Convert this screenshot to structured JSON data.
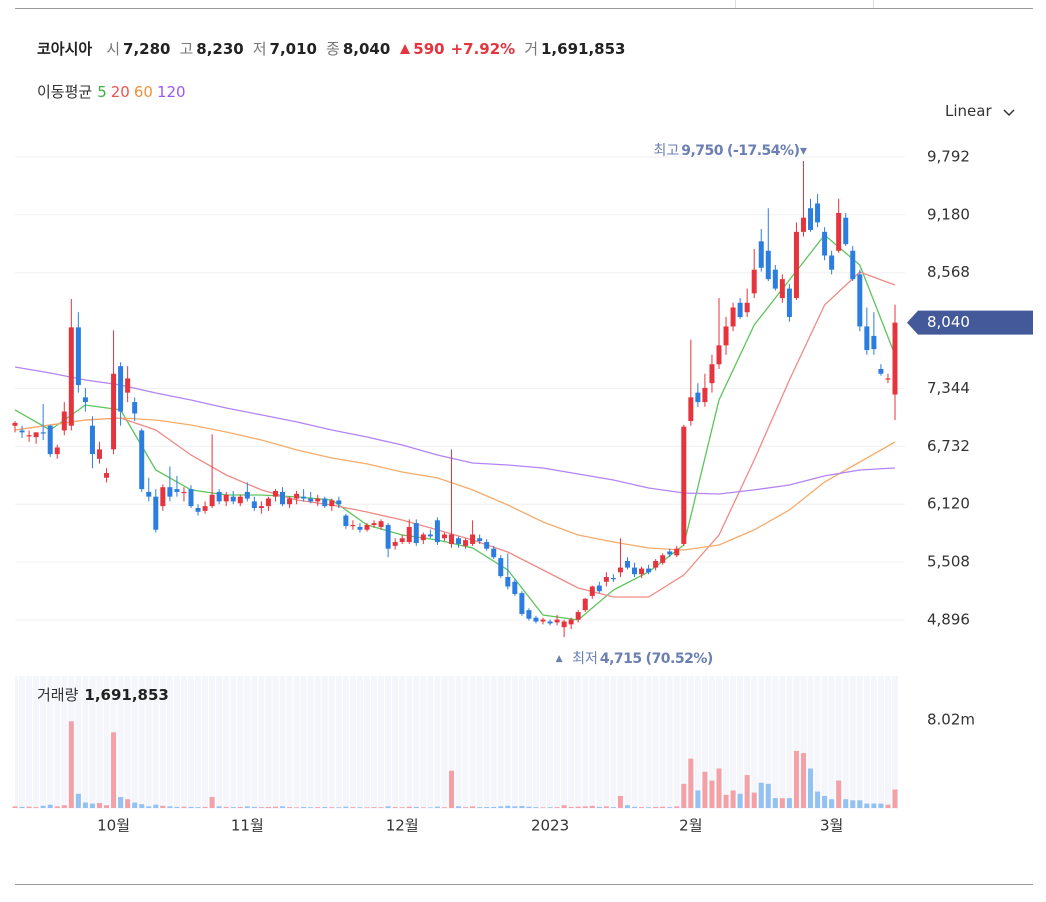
{
  "header": {
    "name": "코아시아",
    "fields": [
      {
        "label": "시",
        "value": "7,280"
      },
      {
        "label": "고",
        "value": "8,230"
      },
      {
        "label": "저",
        "value": "7,010"
      },
      {
        "label": "종",
        "value": "8,040"
      }
    ],
    "change": "590",
    "change_pct": "+7.92%",
    "volume_label": "거",
    "volume": "1,691,853"
  },
  "scale_mode": "Linear",
  "chart_data": {
    "type": "candlestick",
    "categories": [
      null,
      null,
      null,
      null,
      null,
      null,
      null,
      null,
      null,
      null,
      null,
      null,
      null,
      null,
      "10월",
      null,
      null,
      null,
      null,
      null,
      null,
      null,
      null,
      null,
      null,
      null,
      null,
      null,
      null,
      null,
      null,
      null,
      null,
      "11월",
      null,
      null,
      null,
      null,
      null,
      null,
      null,
      null,
      null,
      null,
      null,
      null,
      null,
      null,
      null,
      null,
      null,
      null,
      null,
      null,
      null,
      "12월",
      null,
      null,
      null,
      null,
      null,
      null,
      null,
      null,
      null,
      null,
      null,
      null,
      null,
      null,
      null,
      null,
      null,
      null,
      null,
      null,
      "2023",
      null,
      null,
      null,
      null,
      null,
      null,
      null,
      null,
      null,
      null,
      null,
      null,
      null,
      null,
      null,
      null,
      null,
      null,
      null,
      "2월",
      null,
      null,
      null,
      null,
      null,
      null,
      null,
      null,
      null,
      null,
      null,
      null,
      null,
      null,
      null,
      null,
      null,
      null,
      null,
      "3월",
      null,
      null,
      null,
      null,
      null,
      null,
      null,
      null,
      null
    ],
    "candles": [
      [
        6950,
        7000,
        6880,
        6980
      ],
      [
        6900,
        6950,
        6820,
        6880
      ],
      [
        6850,
        6900,
        6780,
        6850
      ],
      [
        6830,
        6880,
        6760,
        6880
      ],
      [
        6880,
        7180,
        6800,
        6870
      ],
      [
        6950,
        6960,
        6620,
        6650
      ],
      [
        6650,
        6750,
        6600,
        6720
      ],
      [
        6900,
        7200,
        6850,
        7100
      ],
      [
        6950,
        8290,
        6900,
        7990
      ],
      [
        7990,
        8150,
        7300,
        7380
      ],
      [
        7250,
        7350,
        7100,
        7200
      ],
      [
        6950,
        7050,
        6500,
        6650
      ],
      [
        6600,
        6780,
        6550,
        6700
      ],
      [
        6400,
        6500,
        6350,
        6450
      ],
      [
        6700,
        7960,
        6650,
        7500
      ],
      [
        7580,
        7620,
        6950,
        7100
      ],
      [
        7300,
        7580,
        7200,
        7450
      ],
      [
        7200,
        7250,
        7000,
        7080
      ],
      [
        6900,
        6920,
        6250,
        6280
      ],
      [
        6250,
        6400,
        6150,
        6200
      ],
      [
        6200,
        6280,
        5820,
        5850
      ],
      [
        6100,
        6330,
        6050,
        6300
      ],
      [
        6300,
        6520,
        6150,
        6200
      ],
      [
        6280,
        6420,
        6200,
        6250
      ],
      [
        6250,
        6300,
        6150,
        6250
      ],
      [
        6280,
        6320,
        6080,
        6100
      ],
      [
        6080,
        6120,
        6000,
        6040
      ],
      [
        6050,
        6150,
        6020,
        6100
      ],
      [
        6100,
        6860,
        6080,
        6220
      ],
      [
        6250,
        6280,
        6120,
        6150
      ],
      [
        6150,
        6250,
        6100,
        6220
      ],
      [
        6200,
        6260,
        6120,
        6150
      ],
      [
        6130,
        6220,
        6100,
        6200
      ],
      [
        6250,
        6350,
        6150,
        6180
      ],
      [
        6150,
        6200,
        6050,
        6080
      ],
      [
        6080,
        6150,
        6020,
        6100
      ],
      [
        6100,
        6200,
        6050,
        6180
      ],
      [
        6200,
        6280,
        6150,
        6260
      ],
      [
        6250,
        6300,
        6100,
        6120
      ],
      [
        6120,
        6200,
        6080,
        6180
      ],
      [
        6180,
        6260,
        6120,
        6230
      ],
      [
        6200,
        6280,
        6150,
        6180
      ],
      [
        6180,
        6250,
        6130,
        6150
      ],
      [
        6150,
        6220,
        6100,
        6180
      ],
      [
        6180,
        6200,
        6080,
        6100
      ],
      [
        6100,
        6180,
        6050,
        6160
      ],
      [
        6160,
        6200,
        6080,
        6120
      ],
      [
        6000,
        6020,
        5860,
        5890
      ],
      [
        5890,
        5950,
        5850,
        5900
      ],
      [
        5880,
        5920,
        5820,
        5850
      ],
      [
        5850,
        5920,
        5830,
        5900
      ],
      [
        5900,
        5950,
        5870,
        5920
      ],
      [
        5880,
        5960,
        5850,
        5940
      ],
      [
        5900,
        5920,
        5560,
        5650
      ],
      [
        5680,
        5760,
        5640,
        5720
      ],
      [
        5720,
        5800,
        5700,
        5760
      ],
      [
        5720,
        5960,
        5700,
        5880
      ],
      [
        5920,
        5960,
        5680,
        5710
      ],
      [
        5740,
        5820,
        5700,
        5800
      ],
      [
        5800,
        5850,
        5760,
        5780
      ],
      [
        5950,
        5980,
        5690,
        5720
      ],
      [
        5760,
        5820,
        5730,
        5800
      ],
      [
        5700,
        6700,
        5660,
        5800
      ],
      [
        5760,
        5780,
        5660,
        5700
      ],
      [
        5680,
        5760,
        5650,
        5740
      ],
      [
        5700,
        5950,
        5680,
        5800
      ],
      [
        5760,
        5800,
        5700,
        5730
      ],
      [
        5720,
        5750,
        5630,
        5650
      ],
      [
        5650,
        5680,
        5540,
        5560
      ],
      [
        5550,
        5580,
        5340,
        5360
      ],
      [
        5350,
        5600,
        5220,
        5250
      ],
      [
        5300,
        5330,
        5150,
        5170
      ],
      [
        5180,
        5200,
        4940,
        4960
      ],
      [
        5000,
        5020,
        4890,
        4910
      ],
      [
        4920,
        4940,
        4860,
        4880
      ],
      [
        4880,
        4920,
        4850,
        4900
      ],
      [
        4880,
        4900,
        4840,
        4860
      ],
      [
        4870,
        4950,
        4840,
        4900
      ],
      [
        4820,
        4900,
        4715,
        4880
      ],
      [
        4850,
        4920,
        4800,
        4900
      ],
      [
        4900,
        5000,
        4870,
        4980
      ],
      [
        5000,
        5130,
        4980,
        5120
      ],
      [
        5150,
        5260,
        5120,
        5250
      ],
      [
        5260,
        5300,
        5180,
        5200
      ],
      [
        5300,
        5400,
        5250,
        5350
      ],
      [
        5340,
        5380,
        5300,
        5330
      ],
      [
        5400,
        5760,
        5350,
        5450
      ],
      [
        5520,
        5560,
        5430,
        5450
      ],
      [
        5450,
        5500,
        5350,
        5380
      ],
      [
        5380,
        5460,
        5340,
        5440
      ],
      [
        5440,
        5480,
        5380,
        5400
      ],
      [
        5450,
        5540,
        5420,
        5520
      ],
      [
        5500,
        5600,
        5480,
        5580
      ],
      [
        5620,
        5650,
        5560,
        5590
      ],
      [
        5580,
        5680,
        5560,
        5650
      ],
      [
        5700,
        6960,
        5680,
        6940
      ],
      [
        7000,
        7860,
        6950,
        7250
      ],
      [
        7300,
        7400,
        7150,
        7200
      ],
      [
        7200,
        7500,
        7150,
        7350
      ],
      [
        7400,
        7700,
        7300,
        7600
      ],
      [
        7600,
        8300,
        7550,
        7800
      ],
      [
        7800,
        8100,
        7700,
        8000
      ],
      [
        8000,
        8250,
        7950,
        8200
      ],
      [
        8250,
        8300,
        8080,
        8100
      ],
      [
        8150,
        8400,
        8100,
        8250
      ],
      [
        8350,
        8820,
        8300,
        8600
      ],
      [
        8900,
        9030,
        8580,
        8620
      ],
      [
        8800,
        9250,
        8480,
        8500
      ],
      [
        8600,
        8650,
        8380,
        8400
      ],
      [
        8300,
        8550,
        8250,
        8500
      ],
      [
        8400,
        8450,
        8050,
        8100
      ],
      [
        8300,
        9100,
        8280,
        9000
      ],
      [
        9000,
        9750,
        8950,
        9150
      ],
      [
        9250,
        9350,
        9000,
        9020
      ],
      [
        9300,
        9400,
        9050,
        9100
      ],
      [
        9000,
        9050,
        8700,
        8750
      ],
      [
        8750,
        8800,
        8550,
        8600
      ],
      [
        8800,
        9350,
        8780,
        9200
      ],
      [
        9150,
        9200,
        8850,
        8870
      ],
      [
        8800,
        8850,
        8480,
        8500
      ],
      [
        8550,
        8600,
        7950,
        8000
      ],
      [
        8000,
        8200,
        7700,
        7750
      ],
      [
        7900,
        8150,
        7700,
        7760
      ],
      [
        7550,
        7600,
        7480,
        7500
      ],
      [
        7450,
        7500,
        7400,
        7450
      ],
      [
        7280,
        8230,
        7010,
        8040
      ]
    ],
    "up_color": "#e5343d",
    "down_color": "#2b7de0",
    "ylim": [
      4420,
      10077
    ],
    "yticks": [
      {
        "value": 4896,
        "label": "4,896"
      },
      {
        "value": 5508,
        "label": "5,508"
      },
      {
        "value": 6120,
        "label": "6,120"
      },
      {
        "value": 6732,
        "label": "6,732"
      },
      {
        "value": 7344,
        "label": "7,344"
      },
      {
        "value": 8568,
        "label": "8,568"
      },
      {
        "value": 9180,
        "label": "9,180"
      },
      {
        "value": 9792,
        "label": "9,792"
      }
    ],
    "grid": true,
    "last_price": {
      "value": 8040,
      "label": "8,040"
    },
    "ma_label": "이동평균",
    "moving_averages": [
      {
        "name": "5",
        "color": "#3cb043",
        "line_color": "#5cc55c",
        "x": [
          0,
          5,
          10,
          15,
          20,
          25,
          30,
          35,
          40,
          45,
          50,
          55,
          60,
          65,
          70,
          75,
          80,
          85,
          90,
          95,
          100,
          105,
          110,
          115,
          120,
          125
        ],
        "values": [
          7117,
          6905,
          7169,
          7117,
          6482,
          6271,
          6218,
          6218,
          6197,
          6165,
          5901,
          5795,
          5742,
          5657,
          5425,
          4949,
          4896,
          5213,
          5404,
          5689,
          7222,
          8015,
          8491,
          8967,
          8650,
          7698
        ]
      },
      {
        "name": "20",
        "color": "#e8544e",
        "line_color": "#f08a85",
        "x": [
          0,
          5,
          10,
          15,
          20,
          25,
          30,
          35,
          40,
          45,
          50,
          55,
          60,
          65,
          70,
          75,
          80,
          85,
          90,
          95,
          100,
          105,
          110,
          115,
          120,
          125
        ],
        "values": [
          6905,
          6958,
          7011,
          7032,
          6905,
          6641,
          6429,
          6271,
          6165,
          6112,
          6038,
          5953,
          5848,
          5742,
          5615,
          5425,
          5234,
          5139,
          5139,
          5372,
          5795,
          6588,
          7434,
          8227,
          8576,
          8438
        ]
      },
      {
        "name": "60",
        "color": "#f0913a",
        "line_color": "#f5ac6a",
        "x": [
          0,
          5,
          10,
          15,
          20,
          25,
          30,
          35,
          40,
          45,
          50,
          55,
          60,
          65,
          70,
          75,
          80,
          85,
          90,
          95,
          100,
          105,
          110,
          115,
          120,
          125
        ],
        "values": [
          6905,
          6958,
          7011,
          7032,
          7011,
          6958,
          6884,
          6799,
          6694,
          6609,
          6546,
          6461,
          6398,
          6271,
          6112,
          5932,
          5795,
          5721,
          5657,
          5636,
          5689,
          5848,
          6059,
          6355,
          6567,
          6778
        ]
      },
      {
        "name": "120",
        "color": "#9b59f0",
        "line_color": "#b384f5",
        "x": [
          0,
          5,
          10,
          15,
          20,
          25,
          30,
          35,
          40,
          45,
          50,
          55,
          60,
          65,
          70,
          75,
          80,
          85,
          90,
          95,
          100,
          105,
          110,
          115,
          120,
          125
        ],
        "values": [
          7571,
          7508,
          7434,
          7381,
          7296,
          7222,
          7138,
          7064,
          6990,
          6905,
          6831,
          6746,
          6641,
          6556,
          6535,
          6503,
          6440,
          6376,
          6292,
          6239,
          6228,
          6271,
          6323,
          6419,
          6482,
          6503
        ]
      }
    ],
    "annotations": [
      {
        "text": "최고",
        "value": 9750,
        "value_label": "9,750",
        "change": "(-17.54%)"
      },
      {
        "text": "최저",
        "value": 4715,
        "value_label": "4,715",
        "change": "(70.52%)"
      }
    ],
    "volume": {
      "title": "거래량",
      "total_label": "1,691,853",
      "up_color": "#f3a1a6",
      "down_color": "#93c1f2",
      "ylim": [
        0,
        8020000
      ],
      "yticks": [
        {
          "value": 8020000,
          "label": "8.02m"
        }
      ],
      "values": [
        150000,
        100000,
        120000,
        80000,
        200000,
        300000,
        150000,
        250000,
        7900000,
        1300000,
        500000,
        400000,
        450000,
        250000,
        6900000,
        1000000,
        800000,
        500000,
        350000,
        150000,
        300000,
        200000,
        150000,
        100000,
        120000,
        100000,
        80000,
        100000,
        1000000,
        150000,
        100000,
        80000,
        100000,
        150000,
        100000,
        80000,
        90000,
        120000,
        150000,
        80000,
        60000,
        90000,
        70000,
        80000,
        90000,
        70000,
        60000,
        120000,
        80000,
        70000,
        60000,
        80000,
        70000,
        150000,
        80000,
        70000,
        120000,
        100000,
        60000,
        50000,
        120000,
        70000,
        3400000,
        150000,
        80000,
        150000,
        80000,
        90000,
        100000,
        150000,
        200000,
        150000,
        180000,
        120000,
        80000,
        60000,
        70000,
        80000,
        250000,
        100000,
        120000,
        150000,
        200000,
        100000,
        150000,
        80000,
        1100000,
        250000,
        100000,
        80000,
        70000,
        100000,
        120000,
        80000,
        150000,
        2200000,
        4500000,
        1600000,
        3300000,
        2500000,
        3600000,
        1200000,
        1600000,
        1300000,
        3000000,
        1400000,
        2300000,
        2200000,
        900000,
        900000,
        900000,
        5200000,
        5000000,
        3600000,
        1500000,
        1100000,
        800000,
        2500000,
        800000,
        700000,
        700000,
        400000,
        400000,
        400000,
        300000,
        1691853
      ]
    }
  }
}
